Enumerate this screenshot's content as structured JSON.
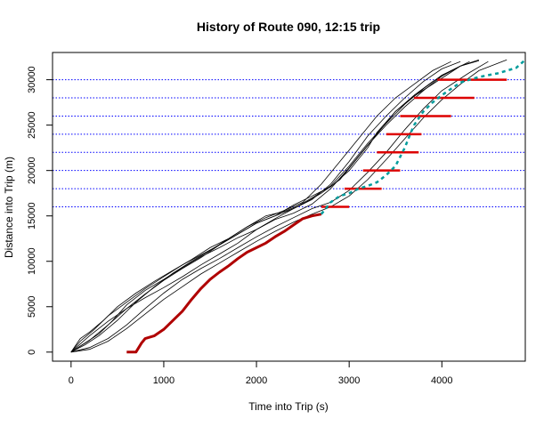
{
  "chart_data": {
    "type": "line",
    "title": "History of Route 090, 12:15 trip",
    "xlabel": "Time into Trip (s)",
    "ylabel": "Distance into Trip (m)",
    "xlim": [
      -200,
      4900
    ],
    "ylim": [
      -1000,
      33000
    ],
    "x_ticks": [
      0,
      1000,
      2000,
      3000,
      4000
    ],
    "y_ticks": [
      0,
      5000,
      10000,
      15000,
      20000,
      25000,
      30000
    ],
    "grid": false,
    "legend": "none",
    "colors": {
      "history": "#000000",
      "current": "#b00000",
      "predicted": "#009c9c",
      "stop_lines": "#0000ff",
      "prediction_band": "#dd0000"
    },
    "stop_lines": [
      16000,
      18000,
      20000,
      22000,
      24000,
      26000,
      28000,
      30000
    ],
    "history_series": [
      {
        "x": [
          0,
          100,
          250,
          400,
          600,
          800,
          1000,
          1200,
          1400,
          1600,
          1800,
          2000,
          2200,
          2400,
          2600,
          2800,
          3000,
          3200,
          3300,
          3500,
          3700,
          3900,
          4050,
          4200,
          4350
        ],
        "y": [
          0,
          1200,
          2500,
          4000,
          5500,
          7000,
          8300,
          9600,
          10700,
          11800,
          13000,
          14200,
          15000,
          16200,
          17200,
          18200,
          20000,
          22500,
          24200,
          26500,
          28200,
          29500,
          30500,
          31500,
          32000
        ]
      },
      {
        "x": [
          0,
          100,
          200,
          350,
          500,
          700,
          900,
          1100,
          1300,
          1500,
          1700,
          1900,
          2100,
          2300,
          2500,
          2700,
          2900,
          3100,
          3300,
          3500,
          3700,
          3900,
          4100,
          4300
        ],
        "y": [
          0,
          1500,
          2200,
          3500,
          5000,
          6500,
          7800,
          9000,
          10200,
          11500,
          12500,
          13800,
          15000,
          15500,
          16300,
          17500,
          19000,
          21500,
          24000,
          26500,
          28300,
          29800,
          31000,
          32000
        ]
      },
      {
        "x": [
          0,
          150,
          300,
          450,
          600,
          800,
          1000,
          1200,
          1400,
          1600,
          1800,
          2000,
          2200,
          2400,
          2600,
          2800,
          3000,
          3200,
          3400,
          3600,
          3800,
          4000,
          4200,
          4400
        ],
        "y": [
          0,
          1000,
          2000,
          3500,
          5200,
          6800,
          8000,
          9300,
          10500,
          11500,
          12600,
          13500,
          14700,
          15800,
          17000,
          18300,
          20500,
          23000,
          25200,
          27300,
          29000,
          30500,
          31500,
          32200
        ]
      },
      {
        "x": [
          0,
          150,
          300,
          500,
          700,
          900,
          1100,
          1300,
          1500,
          1700,
          1900,
          2100,
          2300,
          2500,
          2700,
          2900,
          3100,
          3300,
          3500,
          3700,
          3900,
          4100
        ],
        "y": [
          0,
          800,
          1800,
          3500,
          5500,
          7200,
          8700,
          10000,
          11200,
          12500,
          13800,
          14800,
          15600,
          16500,
          18500,
          21000,
          23500,
          26000,
          28000,
          29500,
          31000,
          32000
        ]
      },
      {
        "x": [
          0,
          200,
          400,
          600,
          800,
          1000,
          1200,
          1400,
          1600,
          1800,
          2000,
          2200,
          2400,
          2600,
          2800,
          3000,
          3200,
          3400,
          3600,
          3800,
          4000,
          4200
        ],
        "y": [
          0,
          1300,
          3000,
          4800,
          6400,
          7900,
          9200,
          10400,
          11800,
          13000,
          14200,
          15000,
          15800,
          16800,
          18500,
          21000,
          23800,
          26000,
          28000,
          29800,
          31200,
          32000
        ]
      },
      {
        "x": [
          0,
          200,
          400,
          600,
          800,
          1000,
          1200,
          1400,
          1600,
          1800,
          2000,
          2200,
          2400,
          2600,
          2800,
          3000,
          3200,
          3400,
          3600,
          3800,
          4000,
          4300,
          4500
        ],
        "y": [
          0,
          500,
          1500,
          3000,
          4800,
          6500,
          8000,
          9200,
          10300,
          11500,
          12700,
          13800,
          14800,
          15800,
          16500,
          17800,
          19800,
          22000,
          24500,
          26800,
          28800,
          30800,
          32000
        ]
      },
      {
        "x": [
          0,
          200,
          400,
          600,
          800,
          1000,
          1200,
          1400,
          1600,
          1800,
          2000,
          2200,
          2400,
          2600,
          2800,
          3000,
          3200,
          3400,
          3600,
          3800,
          4000,
          4200,
          4400,
          4700
        ],
        "y": [
          0,
          300,
          1200,
          2600,
          4200,
          5800,
          7200,
          8600,
          9800,
          11000,
          12200,
          13300,
          14300,
          15200,
          16000,
          17200,
          19000,
          21200,
          23500,
          25800,
          27800,
          29500,
          31000,
          32200
        ]
      },
      {
        "x": [
          0,
          200,
          400,
          600,
          800,
          1000,
          1200,
          1400,
          1600,
          1800,
          2000,
          2200,
          2400,
          2600,
          2800,
          3000,
          3200,
          3400,
          3600,
          3800,
          4000,
          4200,
          4400
        ],
        "y": [
          0,
          1800,
          3400,
          4800,
          6000,
          7100,
          8300,
          9600,
          10800,
          12000,
          13500,
          14600,
          15300,
          16300,
          18000,
          20300,
          22800,
          25000,
          27000,
          28800,
          30400,
          31500,
          32100
        ]
      }
    ],
    "current_trip": {
      "x": [
        600,
        700,
        760,
        800,
        900,
        1000,
        1100,
        1200,
        1300,
        1400,
        1500,
        1600,
        1700,
        1800,
        1900,
        2000,
        2100,
        2200,
        2300,
        2400,
        2500,
        2600,
        2700
      ],
      "y": [
        0,
        0,
        1000,
        1500,
        1800,
        2500,
        3500,
        4500,
        5800,
        7000,
        8000,
        8800,
        9500,
        10300,
        11000,
        11500,
        12000,
        12700,
        13300,
        14000,
        14700,
        15000,
        15200
      ]
    },
    "predicted_path": {
      "x": [
        2700,
        2800,
        2900,
        3000,
        3100,
        3200,
        3300,
        3400,
        3500,
        3550,
        3600,
        3650,
        3700,
        3800,
        3900,
        4000,
        4100,
        4200,
        4300,
        4400,
        4500,
        4600,
        4700,
        4800,
        4900
      ],
      "y": [
        15200,
        16500,
        17200,
        17500,
        18000,
        18300,
        18700,
        19500,
        20500,
        21500,
        22500,
        23800,
        25000,
        26500,
        27500,
        28300,
        29000,
        29700,
        30000,
        30300,
        30500,
        30700,
        31000,
        31300,
        32200
      ]
    },
    "prediction_bands": [
      {
        "y": 16000,
        "x_start": 2700,
        "x_end": 3000
      },
      {
        "y": 18000,
        "x_start": 2950,
        "x_end": 3350
      },
      {
        "y": 20000,
        "x_start": 3150,
        "x_end": 3550
      },
      {
        "y": 22000,
        "x_start": 3300,
        "x_end": 3750
      },
      {
        "y": 24000,
        "x_start": 3400,
        "x_end": 3780
      },
      {
        "y": 26000,
        "x_start": 3550,
        "x_end": 4100
      },
      {
        "y": 28000,
        "x_start": 3700,
        "x_end": 4350
      },
      {
        "y": 30000,
        "x_start": 3950,
        "x_end": 4700
      }
    ]
  }
}
